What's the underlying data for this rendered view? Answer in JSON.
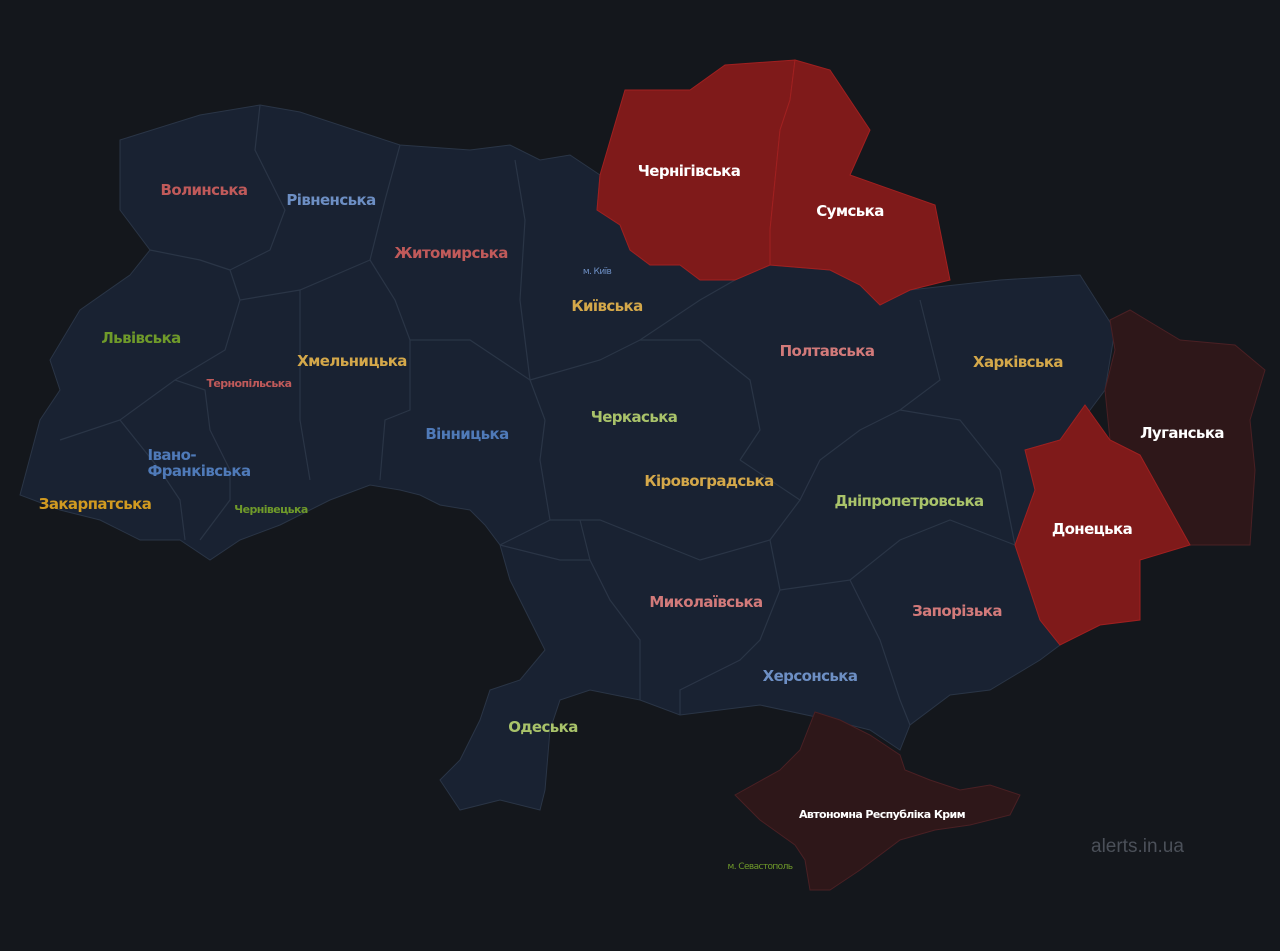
{
  "watermark": "alerts.in.ua",
  "colors": {
    "background": "#14171c",
    "region": "#192232",
    "border": "#2a3546",
    "alert": "#7f1a1a",
    "occupied": "#2e1719"
  },
  "regions": [
    {
      "name": "Волинська",
      "status": "none",
      "color": "#c05a5a"
    },
    {
      "name": "Рівненська",
      "status": "none",
      "color": "#6d8fc4"
    },
    {
      "name": "Житомирська",
      "status": "none",
      "color": "#c05a5a"
    },
    {
      "name": "м. Київ",
      "status": "none",
      "color": "#6d8fc4"
    },
    {
      "name": "Київська",
      "status": "none",
      "color": "#d4a84a"
    },
    {
      "name": "Чернігівська",
      "status": "alert",
      "color": "#ffffff"
    },
    {
      "name": "Сумська",
      "status": "alert",
      "color": "#ffffff"
    },
    {
      "name": "Львівська",
      "status": "none",
      "color": "#6f9a2a"
    },
    {
      "name": "Тернопільська",
      "status": "none",
      "color": "#c05a5a"
    },
    {
      "name": "Хмельницька",
      "status": "none",
      "color": "#d4a84a"
    },
    {
      "name": "Вінницька",
      "status": "none",
      "color": "#4f7ab8"
    },
    {
      "name": "Черкаська",
      "status": "none",
      "color": "#a9c36a"
    },
    {
      "name": "Полтавська",
      "status": "none",
      "color": "#d27a7a"
    },
    {
      "name": "Харківська",
      "status": "none",
      "color": "#d4a84a"
    },
    {
      "name": "Луганська",
      "status": "occupied",
      "color": "#ffffff"
    },
    {
      "name": "Івано-\nФранківська",
      "status": "none",
      "color": "#4f7ab8"
    },
    {
      "name": "Закарпатська",
      "status": "none",
      "color": "#d19a20"
    },
    {
      "name": "Чернівецька",
      "status": "none",
      "color": "#6f9a2a"
    },
    {
      "name": "Кіровоградська",
      "status": "none",
      "color": "#d4a84a"
    },
    {
      "name": "Дніпропетровська",
      "status": "none",
      "color": "#a9c36a"
    },
    {
      "name": "Донецька",
      "status": "alert",
      "color": "#ffffff"
    },
    {
      "name": "Миколаївська",
      "status": "none",
      "color": "#d27a7a"
    },
    {
      "name": "Запорізька",
      "status": "none",
      "color": "#d27a7a"
    },
    {
      "name": "Херсонська",
      "status": "none",
      "color": "#6d8fc4"
    },
    {
      "name": "Одеська",
      "status": "none",
      "color": "#a9c36a"
    },
    {
      "name": "Автономна Республіка Крим",
      "status": "occupied",
      "color": "#ffffff"
    },
    {
      "name": "м. Севастополь",
      "status": "occupied",
      "color": "#6f9a2a"
    }
  ]
}
